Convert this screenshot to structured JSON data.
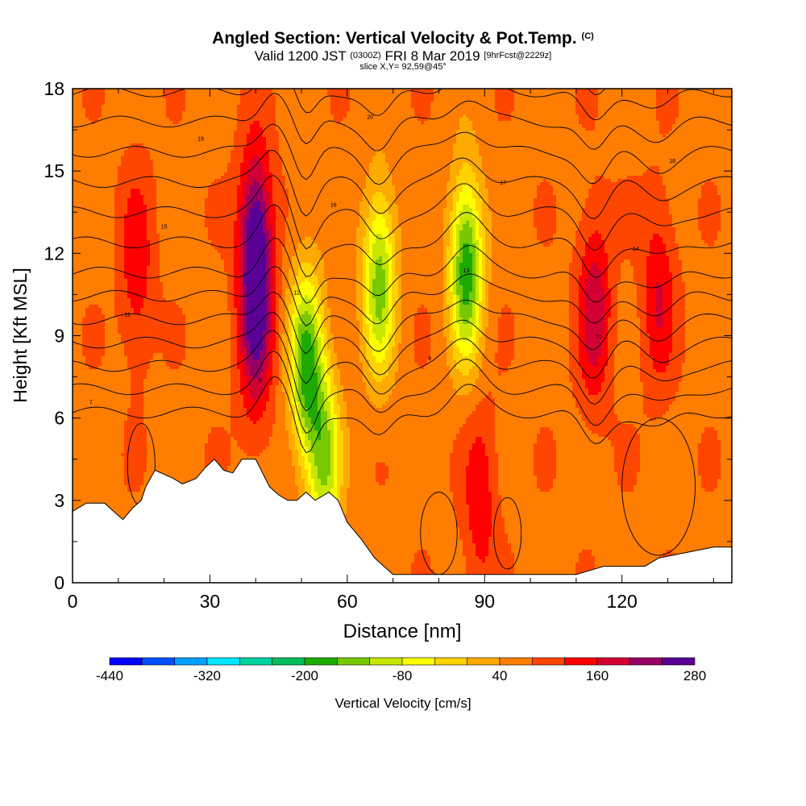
{
  "header": {
    "title": "Angled Section: Vertical Velocity & Pot.Temp.",
    "title_tag": "(C)",
    "valid_prefix": "Valid 1200 JST",
    "valid_utc": "(0300Z)",
    "valid_date": "FRI 8 Mar 2019",
    "forecast": "[9hrFcst@2229z]",
    "slice_label": "slice X,Y= 92,59@45°"
  },
  "chart_data": {
    "type": "heatmap",
    "title": "Angled Section: Vertical Velocity & Pot.Temp.",
    "xlabel": "Distance [nm]",
    "ylabel": "Height [Kft MSL]",
    "xlim": [
      0,
      144
    ],
    "ylim": [
      0,
      18
    ],
    "x_ticks": [
      "0",
      "30",
      "60",
      "90",
      "120"
    ],
    "x_tick_values": [
      0,
      30,
      60,
      90,
      120
    ],
    "y_ticks": [
      "0",
      "3",
      "6",
      "9",
      "12",
      "15",
      "18"
    ],
    "y_tick_values": [
      0,
      3,
      6,
      9,
      12,
      15,
      18
    ],
    "colorbar": {
      "label": "Vertical Velocity [cm/s]",
      "tick_labels": [
        "-440",
        "-320",
        "-200",
        "-80",
        "40",
        "160",
        "280"
      ],
      "tick_values": [
        -440,
        -320,
        -200,
        -80,
        40,
        160,
        280
      ],
      "min": -440,
      "max": 280,
      "step": 40,
      "colors": [
        "#0000ff",
        "#0050ff",
        "#00a0ff",
        "#00e6ff",
        "#00d2a0",
        "#00be5a",
        "#1eaa00",
        "#78c800",
        "#c8e600",
        "#ffff00",
        "#ffd200",
        "#ffaa00",
        "#ff7d00",
        "#ff4600",
        "#ff0000",
        "#d20032",
        "#960064",
        "#5a0096"
      ]
    },
    "velocity_features": [
      {
        "x": 14,
        "z": 11.5,
        "w": 150
      },
      {
        "x": 40,
        "z": 12.5,
        "w": 270
      },
      {
        "x": 40,
        "z": 9.0,
        "w": 200
      },
      {
        "x": 51,
        "z": 8.0,
        "w": -170
      },
      {
        "x": 55,
        "z": 4.5,
        "w": -120
      },
      {
        "x": 67,
        "z": 11.0,
        "w": -140
      },
      {
        "x": 86,
        "z": 11.5,
        "w": -190
      },
      {
        "x": 89,
        "z": 3.0,
        "w": 150
      },
      {
        "x": 114,
        "z": 10.0,
        "w": 190
      },
      {
        "x": 128,
        "z": 10.5,
        "w": 160
      }
    ],
    "isentrope_labels": [
      "7",
      "8",
      "9",
      "10",
      "11",
      "12",
      "13",
      "14",
      "15",
      "16",
      "17",
      "18",
      "19",
      "20"
    ],
    "terrain_kft": [
      [
        0,
        2.6
      ],
      [
        3,
        2.9
      ],
      [
        7,
        2.9
      ],
      [
        9,
        2.6
      ],
      [
        11,
        2.3
      ],
      [
        13,
        2.7
      ],
      [
        15,
        3.0
      ],
      [
        16,
        3.5
      ],
      [
        18,
        4.1
      ],
      [
        22,
        3.8
      ],
      [
        24,
        3.6
      ],
      [
        27,
        3.8
      ],
      [
        29,
        4.2
      ],
      [
        31,
        4.5
      ],
      [
        33,
        4.1
      ],
      [
        35,
        4.0
      ],
      [
        37,
        4.5
      ],
      [
        40,
        4.5
      ],
      [
        43,
        3.5
      ],
      [
        45,
        3.2
      ],
      [
        47,
        3.0
      ],
      [
        49,
        3.0
      ],
      [
        51,
        3.3
      ],
      [
        53,
        3.0
      ],
      [
        56,
        3.3
      ],
      [
        58,
        3.0
      ],
      [
        60,
        2.2
      ],
      [
        63,
        1.6
      ],
      [
        66,
        0.9
      ],
      [
        68,
        0.6
      ],
      [
        70,
        0.3
      ],
      [
        100,
        0.3
      ],
      [
        110,
        0.3
      ],
      [
        116,
        0.6
      ],
      [
        125,
        0.6
      ],
      [
        128,
        0.9
      ],
      [
        140,
        1.3
      ],
      [
        144,
        1.3
      ]
    ]
  }
}
